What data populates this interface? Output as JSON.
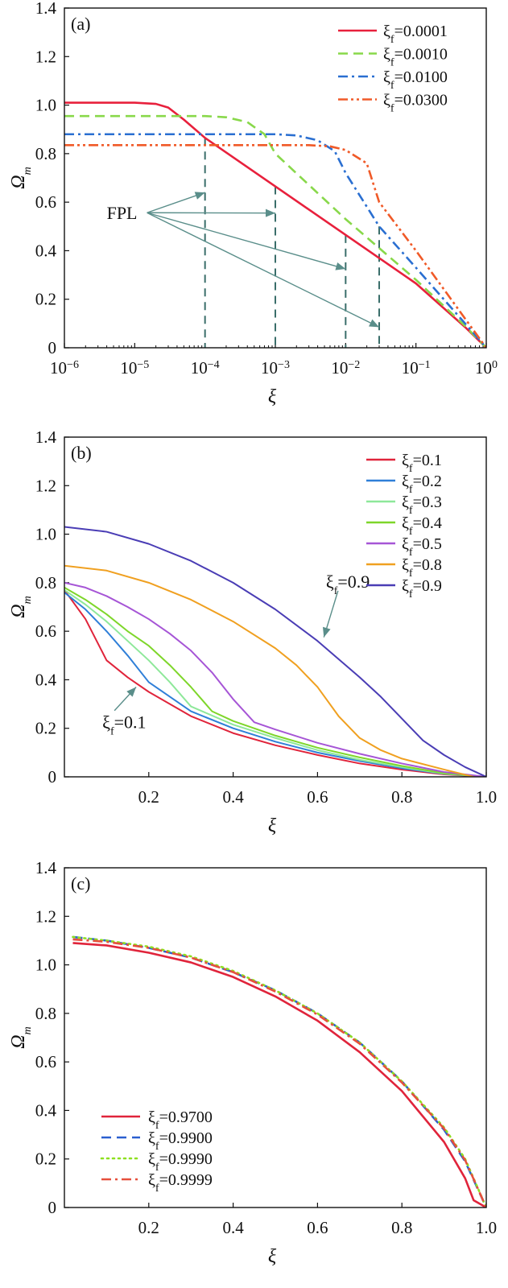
{
  "chart_data": [
    {
      "type": "line",
      "panel_label": "(a)",
      "xscale": "log",
      "xlabel": "ξ",
      "ylabel": "Ωm",
      "xlim": [
        1e-06,
        1
      ],
      "ylim": [
        0,
        1.4
      ],
      "xticks": [
        "10^-6",
        "10^-5",
        "10^-4",
        "10^-3",
        "10^-2",
        "10^-1",
        "10^0"
      ],
      "yticks": [
        "0",
        "0.2",
        "0.4",
        "0.6",
        "0.8",
        "1.0",
        "1.2",
        "1.4"
      ],
      "legend_position": "top-right",
      "series": [
        {
          "name": "ξf=0.0001",
          "color": "#e8203c",
          "dash": "solid",
          "x": [
            1e-06,
            1e-05,
            2e-05,
            3e-05,
            5e-05,
            0.0001,
            0.001,
            0.01,
            0.1,
            0.5,
            1
          ],
          "y": [
            1.01,
            1.01,
            1.005,
            0.99,
            0.94,
            0.865,
            0.665,
            0.465,
            0.265,
            0.085,
            0.0
          ]
        },
        {
          "name": "ξf=0.0010",
          "color": "#88d84a",
          "dash": "dashed",
          "x": [
            1e-06,
            0.0001,
            0.0002,
            0.0004,
            0.0007,
            0.001,
            0.01,
            0.1,
            0.5,
            1
          ],
          "y": [
            0.955,
            0.955,
            0.95,
            0.93,
            0.88,
            0.8,
            0.53,
            0.28,
            0.09,
            0.0
          ]
        },
        {
          "name": "ξf=0.0100",
          "color": "#2a6fd1",
          "dash": "dashdot",
          "x": [
            1e-06,
            0.001,
            0.002,
            0.004,
            0.007,
            0.01,
            0.03,
            0.1,
            0.5,
            1
          ],
          "y": [
            0.88,
            0.88,
            0.875,
            0.855,
            0.81,
            0.72,
            0.5,
            0.33,
            0.1,
            0.0
          ]
        },
        {
          "name": "ξf=0.0300",
          "color": "#f05a28",
          "dash": "dashdotdot",
          "x": [
            1e-06,
            0.003,
            0.006,
            0.01,
            0.02,
            0.03,
            0.1,
            0.5,
            1
          ],
          "y": [
            0.835,
            0.835,
            0.83,
            0.815,
            0.76,
            0.6,
            0.4,
            0.12,
            0.0
          ]
        }
      ],
      "annotations": [
        {
          "text": "FPL",
          "x": 4e-06,
          "y": 0.53,
          "arrows_to": [
            [
              0.0001,
              0.64
            ],
            [
              0.001,
              0.555
            ],
            [
              0.01,
              0.325
            ],
            [
              0.03,
              0.085
            ]
          ]
        }
      ],
      "vertical_dashed_markers": [
        0.0001,
        0.001,
        0.01,
        0.03
      ]
    },
    {
      "type": "line",
      "panel_label": "(b)",
      "xlabel": "ξ",
      "ylabel": "Ωm",
      "xlim": [
        0,
        1.0
      ],
      "ylim": [
        0,
        1.4
      ],
      "xticks": [
        "0.2",
        "0.4",
        "0.6",
        "0.8",
        "1.0"
      ],
      "yticks": [
        "0",
        "0.2",
        "0.4",
        "0.6",
        "0.8",
        "1.0",
        "1.2",
        "1.4"
      ],
      "legend_position": "top-right",
      "series": [
        {
          "name": "ξf=0.1",
          "color": "#e0243b",
          "x": [
            0,
            0.05,
            0.1,
            0.15,
            0.2,
            0.3,
            0.4,
            0.5,
            0.6,
            0.7,
            0.8,
            0.9,
            1.0
          ],
          "y": [
            0.77,
            0.65,
            0.48,
            0.41,
            0.35,
            0.25,
            0.18,
            0.13,
            0.09,
            0.055,
            0.03,
            0.01,
            0.0
          ]
        },
        {
          "name": "ξf=0.2",
          "color": "#2f7fd8",
          "x": [
            0,
            0.05,
            0.1,
            0.15,
            0.2,
            0.3,
            0.4,
            0.5,
            0.6,
            0.7,
            0.8,
            0.9,
            1.0
          ],
          "y": [
            0.76,
            0.69,
            0.6,
            0.5,
            0.39,
            0.27,
            0.2,
            0.145,
            0.1,
            0.065,
            0.035,
            0.012,
            0.0
          ]
        },
        {
          "name": "ξf=0.3",
          "color": "#8ee89a",
          "x": [
            0,
            0.05,
            0.1,
            0.15,
            0.2,
            0.25,
            0.3,
            0.4,
            0.5,
            0.6,
            0.7,
            0.8,
            0.9,
            1.0
          ],
          "y": [
            0.77,
            0.71,
            0.64,
            0.56,
            0.48,
            0.39,
            0.29,
            0.215,
            0.16,
            0.11,
            0.07,
            0.04,
            0.013,
            0.0
          ]
        },
        {
          "name": "ξf=0.4",
          "color": "#7ed62a",
          "x": [
            0,
            0.05,
            0.1,
            0.15,
            0.2,
            0.25,
            0.3,
            0.35,
            0.4,
            0.5,
            0.6,
            0.7,
            0.8,
            0.9,
            1.0
          ],
          "y": [
            0.78,
            0.73,
            0.67,
            0.6,
            0.54,
            0.46,
            0.37,
            0.27,
            0.23,
            0.17,
            0.12,
            0.08,
            0.045,
            0.015,
            0.0
          ]
        },
        {
          "name": "ξf=0.5",
          "color": "#a655d6",
          "x": [
            0,
            0.05,
            0.1,
            0.15,
            0.2,
            0.25,
            0.3,
            0.35,
            0.4,
            0.45,
            0.5,
            0.6,
            0.7,
            0.8,
            0.9,
            1.0
          ],
          "y": [
            0.8,
            0.78,
            0.745,
            0.7,
            0.65,
            0.59,
            0.52,
            0.43,
            0.32,
            0.225,
            0.195,
            0.14,
            0.095,
            0.055,
            0.02,
            0.0
          ]
        },
        {
          "name": "ξf=0.8",
          "color": "#f0a020",
          "x": [
            0,
            0.1,
            0.2,
            0.3,
            0.4,
            0.5,
            0.55,
            0.6,
            0.65,
            0.7,
            0.75,
            0.8,
            0.9,
            0.97
          ],
          "y": [
            0.87,
            0.85,
            0.8,
            0.73,
            0.64,
            0.53,
            0.46,
            0.37,
            0.25,
            0.16,
            0.11,
            0.075,
            0.03,
            0.0
          ]
        },
        {
          "name": "ξf=0.9",
          "color": "#4a3db5",
          "x": [
            0,
            0.1,
            0.2,
            0.3,
            0.4,
            0.5,
            0.6,
            0.7,
            0.75,
            0.8,
            0.85,
            0.9,
            0.95,
            1.0
          ],
          "y": [
            1.03,
            1.01,
            0.96,
            0.89,
            0.8,
            0.69,
            0.56,
            0.41,
            0.33,
            0.24,
            0.15,
            0.09,
            0.04,
            0.0
          ]
        }
      ],
      "annotations": [
        {
          "text": "ξf=0.9",
          "x": 0.62,
          "y": 0.78,
          "arrow_to": [
            0.615,
            0.575
          ]
        },
        {
          "text": "ξf=0.1",
          "x": 0.09,
          "y": 0.2,
          "arrow_to": [
            0.17,
            0.37
          ]
        }
      ]
    },
    {
      "type": "line",
      "panel_label": "(c)",
      "xlabel": "ξ",
      "ylabel": "Ωm",
      "xlim": [
        0,
        1.0
      ],
      "ylim": [
        0,
        1.4
      ],
      "xticks": [
        "0.2",
        "0.4",
        "0.6",
        "0.8",
        "1.0"
      ],
      "yticks": [
        "0",
        "0.2",
        "0.4",
        "0.6",
        "0.8",
        "1.0",
        "1.2",
        "1.4"
      ],
      "legend_position": "bottom-left",
      "series": [
        {
          "name": "ξf=0.9700",
          "color": "#e0243b",
          "dash": "solid",
          "x": [
            0.02,
            0.1,
            0.2,
            0.3,
            0.4,
            0.5,
            0.6,
            0.7,
            0.8,
            0.9,
            0.95,
            0.97,
            1.0
          ],
          "y": [
            1.09,
            1.08,
            1.05,
            1.01,
            0.95,
            0.87,
            0.77,
            0.64,
            0.48,
            0.27,
            0.12,
            0.03,
            0.0
          ]
        },
        {
          "name": "ξf=0.9900",
          "color": "#2a5fd0",
          "dash": "dashed",
          "x": [
            0.02,
            0.1,
            0.2,
            0.3,
            0.4,
            0.5,
            0.6,
            0.7,
            0.8,
            0.9,
            0.95,
            1.0
          ],
          "y": [
            1.115,
            1.1,
            1.07,
            1.03,
            0.97,
            0.895,
            0.8,
            0.68,
            0.52,
            0.32,
            0.19,
            0.0
          ]
        },
        {
          "name": "ξf=0.9990",
          "color": "#8ee020",
          "dash": "dotted",
          "x": [
            0.02,
            0.1,
            0.2,
            0.3,
            0.4,
            0.5,
            0.6,
            0.7,
            0.8,
            0.9,
            0.95,
            1.0
          ],
          "y": [
            1.115,
            1.1,
            1.075,
            1.035,
            0.975,
            0.895,
            0.8,
            0.68,
            0.52,
            0.33,
            0.2,
            0.0
          ]
        },
        {
          "name": "ξf=0.9999",
          "color": "#e6503c",
          "dash": "dashdot",
          "x": [
            0.02,
            0.1,
            0.2,
            0.3,
            0.4,
            0.5,
            0.6,
            0.7,
            0.8,
            0.9,
            0.95,
            1.0
          ],
          "y": [
            1.105,
            1.095,
            1.07,
            1.03,
            0.97,
            0.89,
            0.795,
            0.675,
            0.515,
            0.325,
            0.195,
            0.0
          ]
        }
      ]
    }
  ]
}
